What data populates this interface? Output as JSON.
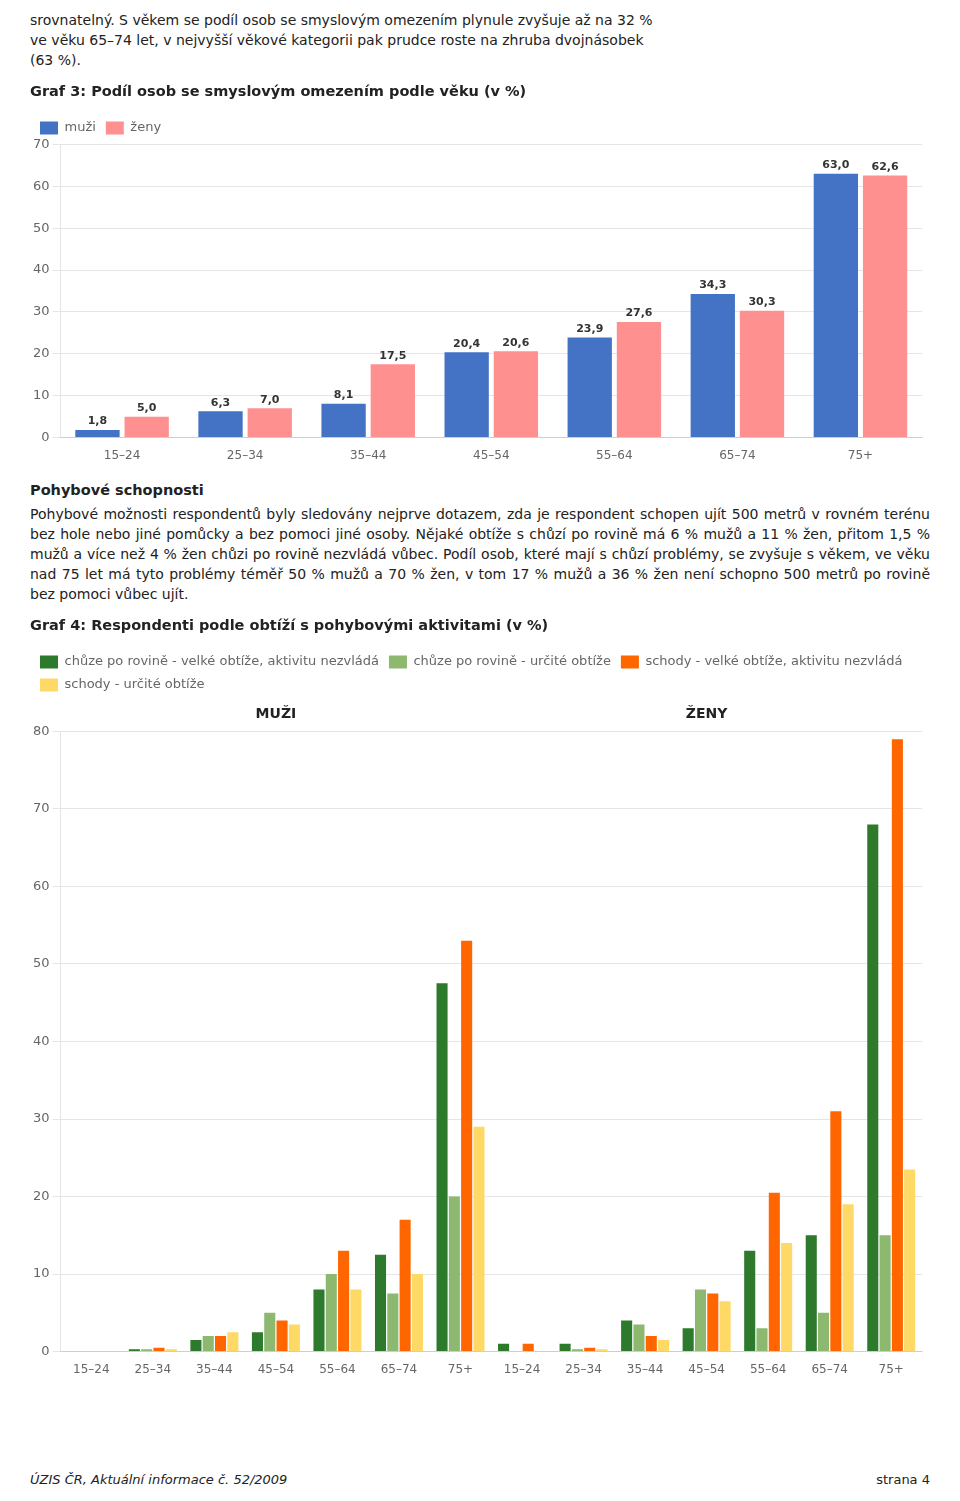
{
  "text_top": "srovnatelný. S věkem se podíl osob se smyslovým omezením plynule zvyšuje až na 32 %\nve věku 65–74 let, v nejvyšší věkové kategorii pak prudce roste na zhruba dvojnásobek\n(63 %).",
  "pohybove_title": "Pohybové schopnosti",
  "pohybove_text": "Pohybové možnosti respondentů byly sledovány nejprve dotazem, zda je respondent schopen ujít 500 metrů v rovném terénu bez hole nebo jiné pomůcky a bez pomoci jiné osoby. Nějaké obtíže s chůzí po rovině má 6 % mužů a 11 % žen, přitom 1,5 % mužů a více než 4 % žen chůzi po rovině nezvládá vůbec. Podíl osob, které mají s chůzí problémy, se zvyšuje s věkem, ve věku nad 75 let má tyto problémy téměř 50 % mužů a 70 % žen, v tom 17 % mužů a 36 % žen není schopno 500 metrů po rovině bez pomoci vůbec ujít.",
  "footer_left": "ÚZIS ČR, Aktuální informace č. 52/2009",
  "footer_right": "strana 4",
  "chart_data": [
    {
      "type": "bar",
      "title": "Graf 3: Podíl osob se smyslovým omezením podle věku (v %)",
      "categories": [
        "15–24",
        "25–34",
        "35–44",
        "45–54",
        "55–64",
        "65–74",
        "75+"
      ],
      "series": [
        {
          "name": "muži",
          "color": "#4472C4",
          "values": [
            1.8,
            6.3,
            8.1,
            20.4,
            23.9,
            34.3,
            63.0
          ],
          "value_labels": [
            "1,8",
            "6,3",
            "8,1",
            "20,4",
            "23,9",
            "34,3",
            "63,0"
          ]
        },
        {
          "name": "ženy",
          "color": "#FF9090",
          "values": [
            5.0,
            7.0,
            17.5,
            20.6,
            27.6,
            30.3,
            62.6
          ],
          "value_labels": [
            "5,0",
            "7,0",
            "17,5",
            "20,6",
            "27,6",
            "30,3",
            "62,6"
          ]
        }
      ],
      "ylim": [
        0,
        70
      ],
      "yticks": [
        0,
        10,
        20,
        30,
        40,
        50,
        60,
        70
      ],
      "grid": true,
      "legend": "upper left",
      "data_labels": true
    },
    {
      "type": "bar",
      "title": "Graf 4: Respondenti podle obtíží s pohybovými aktivitami (v %)",
      "categories": [
        "15–24",
        "25–34",
        "35–44",
        "45–54",
        "55–64",
        "65–74",
        "75+",
        "15–24",
        "25–34",
        "35–44",
        "45–54",
        "55–64",
        "65–74",
        "75+"
      ],
      "annotations": [
        "MUŽI",
        "ŽENY"
      ],
      "series": [
        {
          "name": "chůze po rovině - velké obtíže, aktivitu nezvládá",
          "color": "#2D7A2D",
          "values": [
            0.0,
            0.3,
            1.5,
            2.5,
            8.0,
            12.5,
            47.5,
            1.0,
            1.0,
            4.0,
            3.0,
            13.0,
            15.0,
            68.0
          ]
        },
        {
          "name": "chůze po rovině - určité obtíže",
          "color": "#8DB870",
          "values": [
            0.0,
            0.3,
            2.0,
            5.0,
            10.0,
            7.5,
            20.0,
            0.0,
            0.3,
            3.5,
            8.0,
            3.0,
            5.0,
            15.0
          ]
        },
        {
          "name": "schody - velké obtíže, aktivitu nezvládá",
          "color": "#FF6600",
          "values": [
            0.0,
            0.5,
            2.0,
            4.0,
            13.0,
            17.0,
            53.0,
            1.0,
            0.5,
            2.0,
            7.5,
            20.5,
            31.0,
            79.0
          ]
        },
        {
          "name": "schody - určité obtíže",
          "color": "#FFD966",
          "values": [
            0.0,
            0.3,
            2.5,
            3.5,
            8.0,
            10.0,
            29.0,
            0.0,
            0.3,
            1.5,
            6.5,
            14.0,
            19.0,
            23.5
          ]
        }
      ],
      "ylim": [
        0,
        80
      ],
      "yticks": [
        0,
        10,
        20,
        30,
        40,
        50,
        60,
        70,
        80
      ],
      "grid": true,
      "legend": "upper left"
    }
  ]
}
